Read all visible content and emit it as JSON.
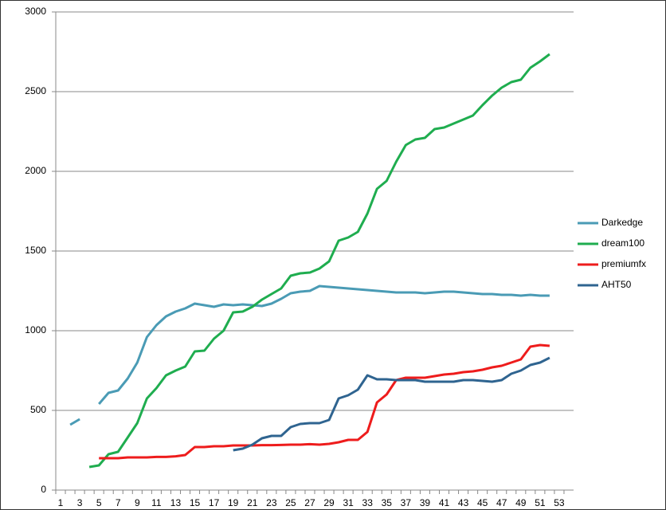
{
  "chart_data": {
    "type": "line",
    "categories": [
      1,
      null,
      3,
      null,
      5,
      null,
      7,
      null,
      9,
      null,
      11,
      null,
      13,
      null,
      15,
      null,
      17,
      null,
      19,
      null,
      21,
      null,
      23,
      null,
      25,
      null,
      27,
      null,
      29,
      null,
      31,
      null,
      33,
      null,
      35,
      null,
      37,
      null,
      39,
      null,
      41,
      null,
      43,
      null,
      45,
      null,
      47,
      null,
      49,
      null,
      51,
      null,
      53,
      null
    ],
    "series": [
      {
        "name": "Darkedge",
        "color": "#4a9bb5",
        "values": [
          null,
          410,
          445,
          null,
          540,
          610,
          625,
          700,
          800,
          960,
          1035,
          1090,
          1120,
          1140,
          1170,
          1160,
          1150,
          1165,
          1160,
          1165,
          1160,
          1155,
          1170,
          1200,
          1235,
          1245,
          1250,
          1280,
          1275,
          1270,
          1265,
          1260,
          1255,
          1250,
          1245,
          1240,
          1240,
          1240,
          1235,
          1240,
          1245,
          1245,
          1240,
          1235,
          1230,
          1230,
          1225,
          1225,
          1220,
          1225,
          1220,
          1220,
          null,
          null
        ]
      },
      {
        "name": "dream100",
        "color": "#1fad4f",
        "values": [
          null,
          null,
          null,
          145,
          155,
          225,
          240,
          330,
          420,
          575,
          640,
          720,
          750,
          775,
          870,
          875,
          950,
          1000,
          1115,
          1120,
          1150,
          1195,
          1230,
          1265,
          1345,
          1360,
          1365,
          1390,
          1435,
          1565,
          1585,
          1620,
          1735,
          1890,
          1940,
          2060,
          2165,
          2200,
          2210,
          2265,
          2275,
          2300,
          2325,
          2350,
          2415,
          2475,
          2525,
          2560,
          2575,
          2650,
          2690,
          2735,
          null,
          null
        ]
      },
      {
        "name": "premiumfx",
        "color": "#ee1c1c",
        "values": [
          null,
          null,
          null,
          null,
          200,
          200,
          200,
          205,
          205,
          205,
          208,
          208,
          212,
          220,
          270,
          270,
          275,
          275,
          280,
          280,
          280,
          282,
          282,
          283,
          285,
          285,
          288,
          285,
          290,
          300,
          315,
          315,
          365,
          550,
          600,
          690,
          705,
          705,
          705,
          715,
          725,
          730,
          740,
          745,
          755,
          770,
          780,
          800,
          820,
          900,
          910,
          905,
          null,
          null
        ]
      },
      {
        "name": "AHT50",
        "color": "#2f6490",
        "values": [
          null,
          null,
          null,
          null,
          null,
          null,
          null,
          null,
          null,
          null,
          null,
          null,
          null,
          null,
          null,
          null,
          null,
          null,
          250,
          260,
          285,
          325,
          340,
          340,
          395,
          415,
          420,
          420,
          440,
          575,
          595,
          630,
          720,
          695,
          695,
          690,
          690,
          690,
          680,
          680,
          680,
          680,
          690,
          690,
          685,
          680,
          690,
          730,
          750,
          785,
          800,
          830,
          null,
          null
        ]
      }
    ],
    "ylim": [
      0,
      3000
    ],
    "yticks": [
      0,
      500,
      1000,
      1500,
      2000,
      2500,
      3000
    ],
    "grid": true,
    "legend": "right"
  }
}
